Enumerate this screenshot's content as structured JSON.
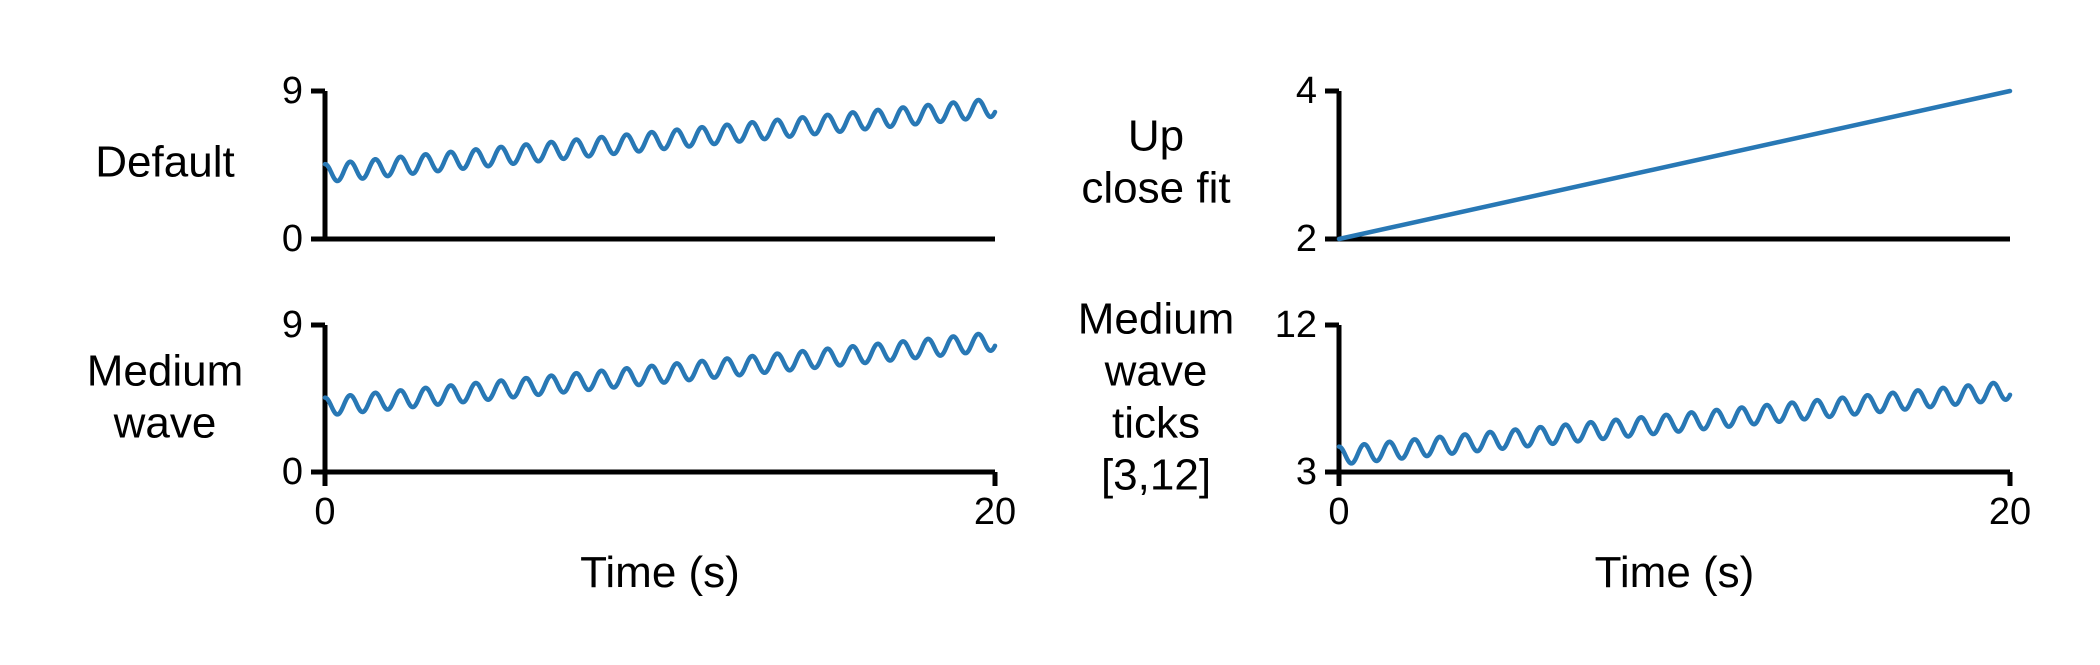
{
  "colors": {
    "series": "#2878b5",
    "axis": "#000000"
  },
  "chart_data": [
    {
      "type": "line",
      "panel": "top-left",
      "row_label": [
        "Default"
      ],
      "xlim": [
        0,
        20
      ],
      "ylim": [
        0,
        9
      ],
      "x_ticks": [],
      "y_ticks": [
        "0",
        "9"
      ],
      "xlabel": "",
      "series": [
        {
          "func": "wave",
          "base": 4.0,
          "slope": 0.2,
          "amplitude": 0.55,
          "period": 0.75,
          "x": [
            0,
            20
          ]
        }
      ]
    },
    {
      "type": "line",
      "panel": "top-right",
      "row_label": [
        "Up",
        "close fit"
      ],
      "xlim": [
        0,
        20
      ],
      "ylim": [
        2,
        4
      ],
      "x_ticks": [],
      "y_ticks": [
        "2",
        "4"
      ],
      "xlabel": "",
      "series": [
        {
          "func": "linear",
          "x": [
            0,
            20
          ],
          "y": [
            2,
            4
          ]
        }
      ]
    },
    {
      "type": "line",
      "panel": "bottom-left",
      "row_label": [
        "Medium",
        "wave"
      ],
      "xlim": [
        0,
        20
      ],
      "ylim": [
        0,
        9
      ],
      "x_ticks": [
        "0",
        "20"
      ],
      "y_ticks": [
        "0",
        "9"
      ],
      "xlabel": "Time (s)",
      "series": [
        {
          "func": "wave",
          "base": 4.0,
          "slope": 0.2,
          "amplitude": 0.55,
          "period": 0.75,
          "x": [
            0,
            20
          ]
        }
      ]
    },
    {
      "type": "line",
      "panel": "bottom-right",
      "row_label": [
        "Medium",
        "wave",
        "ticks",
        "[3,12]"
      ],
      "xlim": [
        0,
        20
      ],
      "ylim": [
        3,
        12
      ],
      "x_ticks": [
        "0",
        "20"
      ],
      "y_ticks": [
        "3",
        "12"
      ],
      "xlabel": "Time (s)",
      "series": [
        {
          "func": "wave",
          "base": 4.0,
          "slope": 0.2,
          "amplitude": 0.55,
          "period": 0.75,
          "x": [
            0,
            20
          ]
        }
      ]
    }
  ]
}
